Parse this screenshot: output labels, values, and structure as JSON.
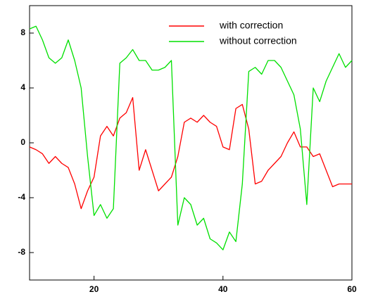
{
  "chart_data": {
    "type": "line",
    "x": [
      10,
      11,
      12,
      13,
      14,
      15,
      16,
      17,
      18,
      19,
      20,
      21,
      22,
      23,
      24,
      25,
      26,
      27,
      28,
      29,
      30,
      31,
      32,
      33,
      34,
      35,
      36,
      37,
      38,
      39,
      40,
      41,
      42,
      43,
      44,
      45,
      46,
      47,
      48,
      49,
      50,
      51,
      52,
      53,
      54,
      55,
      56,
      57,
      58,
      59,
      60
    ],
    "series": [
      {
        "name": "with correction",
        "color": "#ff0000",
        "values": [
          -0.3,
          -0.5,
          -0.8,
          -1.5,
          -1.0,
          -1.5,
          -1.8,
          -3,
          -4.8,
          -3.5,
          -2.5,
          0.5,
          1.2,
          0.5,
          1.8,
          2.2,
          3.3,
          -2,
          -0.5,
          -2,
          -3.5,
          -3,
          -2.5,
          -1,
          1.5,
          1.8,
          1.5,
          2,
          1.5,
          1.2,
          -0.3,
          -0.5,
          2.5,
          2.8,
          1,
          -3,
          -2.8,
          -2,
          -1.5,
          -1,
          0,
          0.8,
          -0.3,
          -0.3,
          -1,
          -0.8,
          -2,
          -3.2,
          -3,
          -3,
          -3
        ]
      },
      {
        "name": "without correction",
        "color": "#00e000",
        "values": [
          8.3,
          8.5,
          7.5,
          6.2,
          5.8,
          6.2,
          7.5,
          6,
          4,
          -1,
          -5.3,
          -4.5,
          -5.5,
          -4.8,
          5.8,
          6.2,
          6.8,
          6,
          6,
          5.3,
          5.3,
          5.5,
          6,
          -6,
          -4,
          -4.5,
          -6,
          -5.5,
          -7,
          -7.3,
          -7.8,
          -6.5,
          -7.2,
          -3,
          5.2,
          5.5,
          5,
          6,
          6,
          5.5,
          4.5,
          3.5,
          1,
          -4.5,
          4,
          3,
          4.5,
          5.5,
          6.5,
          5.5,
          6
        ]
      }
    ],
    "xlim": [
      10,
      60
    ],
    "xticks": [
      20,
      40,
      60
    ],
    "ylim": [
      -10,
      10
    ],
    "yticks": [
      -8,
      -4,
      0,
      4,
      8
    ],
    "grid": false,
    "legend": "upper right"
  }
}
